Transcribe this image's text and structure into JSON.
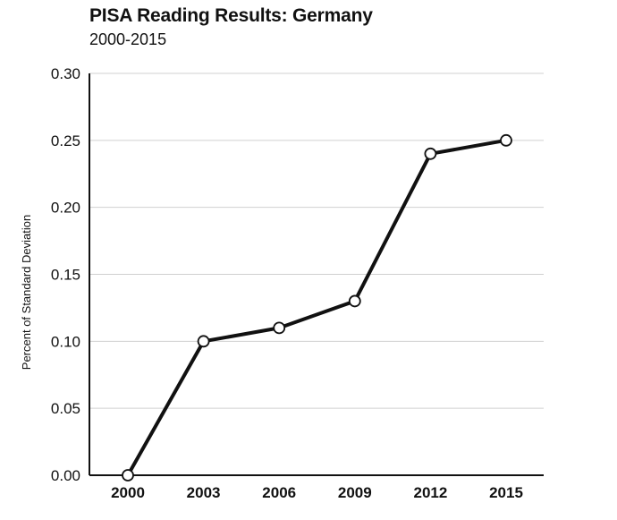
{
  "chart_data": {
    "type": "line",
    "title": "PISA Reading Results: Germany",
    "subtitle": "2000-2015",
    "xlabel": "",
    "ylabel": "Percent of Standard Deviation",
    "categories": [
      "2000",
      "2003",
      "2006",
      "2009",
      "2012",
      "2015"
    ],
    "values": [
      0.0,
      0.1,
      0.11,
      0.13,
      0.24,
      0.25
    ],
    "ylim": [
      0,
      0.3
    ],
    "yticks": [
      "0.00",
      "0.05",
      "0.10",
      "0.15",
      "0.20",
      "0.25",
      "0.30"
    ],
    "grid": true,
    "legend": "none",
    "colors": {
      "line": "#111111",
      "marker_fill": "#ffffff",
      "grid": "#d0d0d0"
    }
  }
}
